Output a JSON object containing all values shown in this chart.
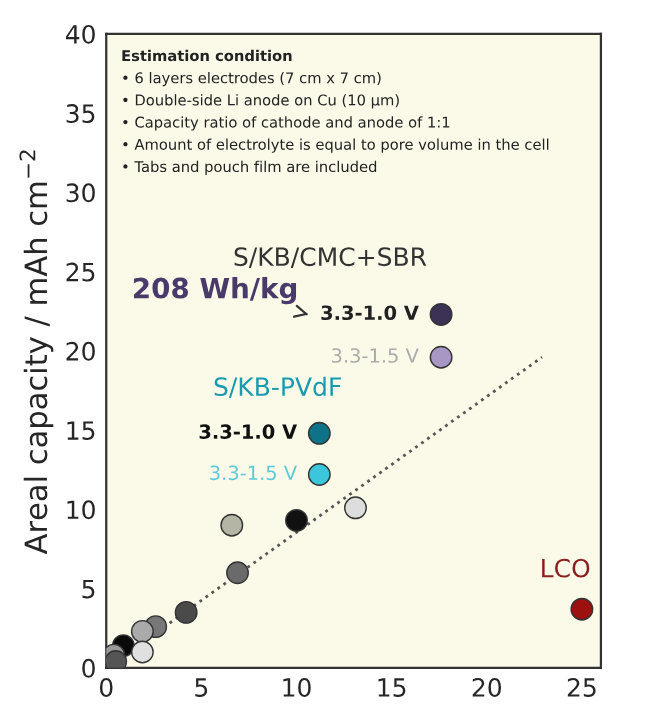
{
  "chart_data": {
    "type": "scatter",
    "ylabel": "Areal capacity / mAh cm$^{−2}$",
    "xlim": [
      0,
      26
    ],
    "ylim": [
      0,
      40
    ],
    "xticks": [
      0,
      5,
      10,
      15,
      20,
      25
    ],
    "yticks": [
      0,
      5,
      10,
      15,
      20,
      25,
      30,
      35,
      40
    ],
    "grid": false,
    "legend": false,
    "series": [
      {
        "type": "line",
        "line_style": "dotted",
        "color": "#555555",
        "x": [
          0.5,
          22.9
        ],
        "values": [
          0.4,
          19.6
        ]
      },
      {
        "marker": "circle",
        "x": [
          17.6,
          17.6,
          11.2,
          11.2,
          13.1,
          10.0,
          6.6,
          6.9,
          4.2,
          2.6,
          1.9,
          1.9,
          0.9,
          0.5,
          0.4,
          25.0
        ],
        "values": [
          22.3,
          19.6,
          14.8,
          12.2,
          10.1,
          9.3,
          9.0,
          6.0,
          3.5,
          2.6,
          2.3,
          1.0,
          1.4,
          0.4,
          0.8,
          3.7
        ],
        "colors": [
          "#3b3256",
          "#a897c4",
          "#0e7388",
          "#3cc6dc",
          "#dddddd",
          "#111111",
          "#b5b5a5",
          "#6a6a6a",
          "#4a4a4a",
          "#777777",
          "#aaaaaa",
          "#e0e0e0",
          "#0a0a0a",
          "#555555",
          "#999999",
          "#9c1010"
        ]
      }
    ],
    "annotations": [
      "Estimation condition",
      "• 6 layers electrodes (7 cm x 7 cm)",
      "• Double-side Li anode on Cu (10 µm)",
      "• Capacity ratio of cathode and anode of 1:1",
      "• Amount of electrolyte is equal to pore volume in the cell",
      "• Tabs and pouch film are included",
      "208 Wh/kg",
      {
        "text": "S/KB/CMC+SBR",
        "x": 17.6,
        "y": 22.3
      },
      {
        "text": "3.3-1.0 V",
        "x": 17.6,
        "y": 22.3
      },
      {
        "text": "3.3-1.5 V",
        "x": 17.6,
        "y": 19.6
      },
      {
        "text": "S/KB-PVdF",
        "x": 11.2,
        "y": 14.8
      },
      {
        "text": "3.3-1.0 V",
        "x": 11.2,
        "y": 14.8
      },
      {
        "text": "3.3-1.5 V",
        "x": 11.2,
        "y": 12.2
      },
      {
        "text": "LCO",
        "x": 25.0,
        "y": 3.7
      }
    ]
  }
}
